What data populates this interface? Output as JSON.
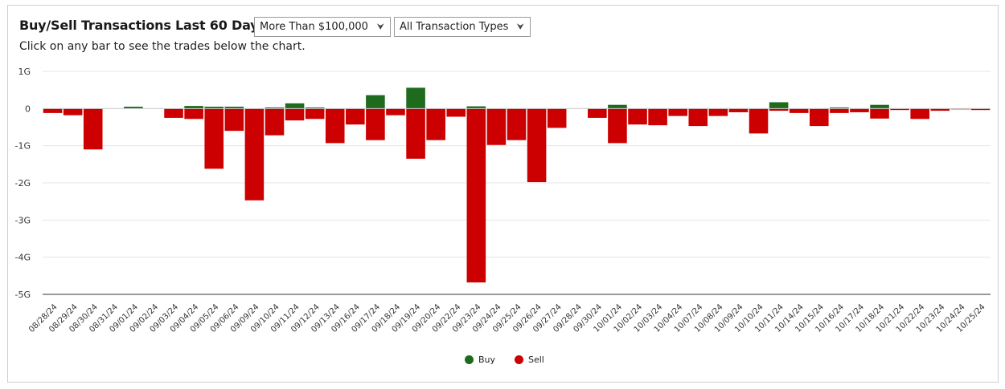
{
  "header": {
    "title": "Buy/Sell Transactions Last 60 Days",
    "subtitle": "Click on any bar to see the trades below the chart."
  },
  "filters": {
    "amount": {
      "selected": "More Than $100,000",
      "chevron_icon": "chevron-down-icon"
    },
    "type": {
      "selected": "All Transaction Types",
      "chevron_icon": "chevron-down-icon"
    }
  },
  "colors": {
    "buy": "#1e6b1e",
    "sell": "#cc0000",
    "axis": "#333333",
    "grid": "#e6e6e6"
  },
  "legend": {
    "buy": "Buy",
    "sell": "Sell"
  },
  "chart_data": {
    "type": "bar",
    "unit": "G",
    "ylim": [
      -5,
      1
    ],
    "y_ticks": [
      {
        "value": 1,
        "label": "1G"
      },
      {
        "value": 0,
        "label": "0"
      },
      {
        "value": -1,
        "label": "-1G"
      },
      {
        "value": -2,
        "label": "-2G"
      },
      {
        "value": -3,
        "label": "-3G"
      },
      {
        "value": -4,
        "label": "-4G"
      },
      {
        "value": -5,
        "label": "-5G"
      }
    ],
    "categories": [
      "08/28/24",
      "08/29/24",
      "08/30/24",
      "08/31/24",
      "09/01/24",
      "09/02/24",
      "09/03/24",
      "09/04/24",
      "09/05/24",
      "09/06/24",
      "09/09/24",
      "09/10/24",
      "09/11/24",
      "09/12/24",
      "09/13/24",
      "09/16/24",
      "09/17/24",
      "09/18/24",
      "09/19/24",
      "09/20/24",
      "09/22/24",
      "09/23/24",
      "09/24/24",
      "09/25/24",
      "09/26/24",
      "09/27/24",
      "09/28/24",
      "09/30/24",
      "10/01/24",
      "10/02/24",
      "10/03/24",
      "10/04/24",
      "10/07/24",
      "10/08/24",
      "10/09/24",
      "10/10/24",
      "10/11/24",
      "10/14/24",
      "10/15/24",
      "10/16/24",
      "10/17/24",
      "10/18/24",
      "10/21/24",
      "10/22/24",
      "10/23/24",
      "10/24/24",
      "10/25/24"
    ],
    "series": [
      {
        "name": "Buy",
        "values": [
          0,
          0,
          0,
          0,
          0.05,
          0,
          0,
          0.07,
          0.05,
          0.05,
          0,
          0.03,
          0.14,
          0.03,
          0,
          0,
          0.36,
          0,
          0.56,
          0,
          0,
          0.06,
          0,
          0,
          0,
          0,
          0,
          0,
          0.1,
          0,
          0,
          0,
          0,
          0,
          0,
          0,
          0.17,
          0,
          0,
          0.03,
          0,
          0.1,
          0,
          0,
          0,
          0,
          0
        ]
      },
      {
        "name": "Sell",
        "values": [
          -0.12,
          -0.18,
          -1.1,
          0,
          0,
          0,
          -0.25,
          -0.28,
          -1.62,
          -0.6,
          -2.47,
          -0.72,
          -0.32,
          -0.28,
          -0.93,
          -0.43,
          -0.85,
          -0.18,
          -1.35,
          -0.85,
          -0.22,
          -4.68,
          -0.98,
          -0.85,
          -1.98,
          -0.52,
          0,
          -0.25,
          -0.93,
          -0.43,
          -0.45,
          -0.2,
          -0.47,
          -0.2,
          -0.1,
          -0.67,
          -0.06,
          -0.12,
          -0.47,
          -0.12,
          -0.1,
          -0.27,
          -0.04,
          -0.28,
          -0.06,
          -0.02,
          -0.04
        ]
      }
    ]
  }
}
